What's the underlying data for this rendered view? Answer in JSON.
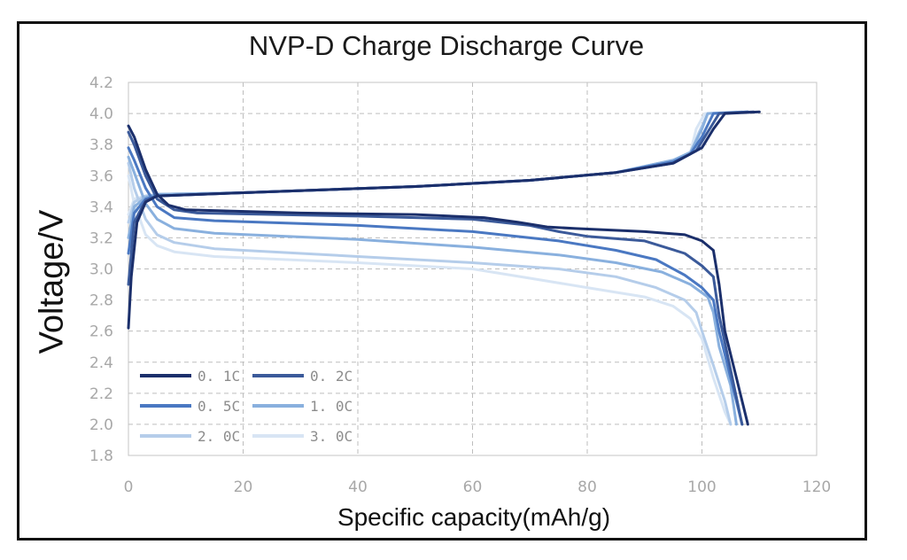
{
  "chart_data": {
    "type": "line",
    "title": "NVP-D Charge Discharge Curve",
    "xlabel": "Specific capacity(mAh/g)",
    "ylabel": "Voltage/V",
    "xlim": [
      0,
      120
    ],
    "ylim": [
      1.8,
      4.2
    ],
    "xticks": [
      "0",
      "20",
      "40",
      "60",
      "80",
      "100",
      "120"
    ],
    "yticks": [
      "1.8",
      "2.0",
      "2.2",
      "2.4",
      "2.6",
      "2.8",
      "3.0",
      "3.2",
      "3.4",
      "3.6",
      "3.8",
      "4.0",
      "4.2"
    ],
    "grid": true,
    "legend_position": "lower-left",
    "series": [
      {
        "name": "0. 1C",
        "color": "#1b2f6b",
        "charge": [
          [
            0,
            2.62
          ],
          [
            0.5,
            2.95
          ],
          [
            1.5,
            3.3
          ],
          [
            3,
            3.43
          ],
          [
            5,
            3.47
          ],
          [
            20,
            3.49
          ],
          [
            50,
            3.53
          ],
          [
            70,
            3.57
          ],
          [
            85,
            3.62
          ],
          [
            95,
            3.68
          ],
          [
            100,
            3.78
          ],
          [
            102,
            3.9
          ],
          [
            104,
            4.0
          ],
          [
            110,
            4.01
          ]
        ],
        "discharge": [
          [
            0,
            3.92
          ],
          [
            1,
            3.85
          ],
          [
            3,
            3.64
          ],
          [
            5,
            3.48
          ],
          [
            7,
            3.41
          ],
          [
            10,
            3.38
          ],
          [
            30,
            3.36
          ],
          [
            50,
            3.35
          ],
          [
            62,
            3.33
          ],
          [
            68,
            3.3
          ],
          [
            73,
            3.27
          ],
          [
            78,
            3.26
          ],
          [
            90,
            3.24
          ],
          [
            97,
            3.22
          ],
          [
            100,
            3.18
          ],
          [
            102,
            3.12
          ],
          [
            103,
            2.9
          ],
          [
            104,
            2.6
          ],
          [
            106,
            2.3
          ],
          [
            108,
            2.0
          ]
        ]
      },
      {
        "name": "0. 2C",
        "color": "#3b5a9a",
        "charge": [
          [
            0,
            2.9
          ],
          [
            1,
            3.3
          ],
          [
            3,
            3.44
          ],
          [
            5,
            3.47
          ],
          [
            20,
            3.49
          ],
          [
            50,
            3.53
          ],
          [
            70,
            3.57
          ],
          [
            85,
            3.62
          ],
          [
            95,
            3.68
          ],
          [
            99,
            3.76
          ],
          [
            101,
            3.88
          ],
          [
            103,
            4.0
          ],
          [
            109,
            4.01
          ]
        ],
        "discharge": [
          [
            0,
            3.88
          ],
          [
            1,
            3.8
          ],
          [
            3,
            3.6
          ],
          [
            5,
            3.45
          ],
          [
            8,
            3.38
          ],
          [
            12,
            3.36
          ],
          [
            40,
            3.34
          ],
          [
            60,
            3.32
          ],
          [
            70,
            3.28
          ],
          [
            75,
            3.24
          ],
          [
            80,
            3.21
          ],
          [
            90,
            3.18
          ],
          [
            97,
            3.1
          ],
          [
            100,
            3.02
          ],
          [
            102,
            2.95
          ],
          [
            103,
            2.7
          ],
          [
            105,
            2.35
          ],
          [
            107,
            2.0
          ]
        ]
      },
      {
        "name": "0. 5C",
        "color": "#4a78c2",
        "charge": [
          [
            0,
            3.1
          ],
          [
            1,
            3.36
          ],
          [
            3,
            3.45
          ],
          [
            5,
            3.47
          ],
          [
            20,
            3.49
          ],
          [
            50,
            3.53
          ],
          [
            70,
            3.57
          ],
          [
            85,
            3.62
          ],
          [
            95,
            3.69
          ],
          [
            98,
            3.74
          ],
          [
            100,
            3.85
          ],
          [
            102,
            4.0
          ],
          [
            108,
            4.01
          ]
        ],
        "discharge": [
          [
            0,
            3.78
          ],
          [
            1,
            3.7
          ],
          [
            3,
            3.52
          ],
          [
            5,
            3.4
          ],
          [
            8,
            3.33
          ],
          [
            15,
            3.31
          ],
          [
            40,
            3.28
          ],
          [
            60,
            3.24
          ],
          [
            75,
            3.18
          ],
          [
            85,
            3.12
          ],
          [
            92,
            3.06
          ],
          [
            97,
            2.96
          ],
          [
            100,
            2.88
          ],
          [
            102,
            2.8
          ],
          [
            103,
            2.6
          ],
          [
            105,
            2.3
          ],
          [
            107,
            2.0
          ]
        ]
      },
      {
        "name": "1. 0C",
        "color": "#89b0de",
        "charge": [
          [
            0,
            3.2
          ],
          [
            1,
            3.4
          ],
          [
            3,
            3.46
          ],
          [
            5,
            3.48
          ],
          [
            20,
            3.49
          ],
          [
            50,
            3.53
          ],
          [
            70,
            3.57
          ],
          [
            85,
            3.62
          ],
          [
            95,
            3.7
          ],
          [
            98,
            3.75
          ],
          [
            100,
            3.9
          ],
          [
            101,
            4.0
          ],
          [
            108,
            4.01
          ]
        ],
        "discharge": [
          [
            0,
            3.72
          ],
          [
            1,
            3.62
          ],
          [
            3,
            3.42
          ],
          [
            5,
            3.32
          ],
          [
            8,
            3.26
          ],
          [
            15,
            3.23
          ],
          [
            40,
            3.19
          ],
          [
            60,
            3.14
          ],
          [
            75,
            3.09
          ],
          [
            85,
            3.04
          ],
          [
            93,
            2.98
          ],
          [
            98,
            2.9
          ],
          [
            101,
            2.82
          ],
          [
            102,
            2.72
          ],
          [
            103,
            2.5
          ],
          [
            105,
            2.25
          ],
          [
            106,
            2.0
          ]
        ]
      },
      {
        "name": "2. 0C",
        "color": "#b5cdea",
        "charge": [
          [
            0,
            3.3
          ],
          [
            1,
            3.43
          ],
          [
            3,
            3.47
          ],
          [
            5,
            3.48
          ],
          [
            20,
            3.49
          ],
          [
            50,
            3.53
          ],
          [
            70,
            3.57
          ],
          [
            85,
            3.62
          ],
          [
            95,
            3.7
          ],
          [
            98,
            3.74
          ],
          [
            99.5,
            3.88
          ],
          [
            101,
            4.0
          ],
          [
            107,
            4.01
          ]
        ],
        "discharge": [
          [
            0,
            3.68
          ],
          [
            1,
            3.52
          ],
          [
            3,
            3.32
          ],
          [
            5,
            3.22
          ],
          [
            8,
            3.17
          ],
          [
            15,
            3.13
          ],
          [
            40,
            3.08
          ],
          [
            60,
            3.04
          ],
          [
            75,
            3.0
          ],
          [
            85,
            2.95
          ],
          [
            92,
            2.88
          ],
          [
            97,
            2.8
          ],
          [
            99,
            2.72
          ],
          [
            100,
            2.6
          ],
          [
            102,
            2.38
          ],
          [
            104,
            2.15
          ],
          [
            105,
            2.0
          ]
        ]
      },
      {
        "name": "3. 0C",
        "color": "#d8e5f4",
        "charge": [
          [
            0,
            3.35
          ],
          [
            1,
            3.45
          ],
          [
            3,
            3.47
          ],
          [
            5,
            3.48
          ],
          [
            20,
            3.49
          ],
          [
            50,
            3.53
          ],
          [
            70,
            3.57
          ],
          [
            85,
            3.62
          ],
          [
            95,
            3.7
          ],
          [
            98,
            3.75
          ],
          [
            99,
            3.9
          ],
          [
            100.5,
            4.0
          ],
          [
            106,
            4.01
          ]
        ],
        "discharge": [
          [
            0,
            3.6
          ],
          [
            1,
            3.42
          ],
          [
            3,
            3.22
          ],
          [
            5,
            3.15
          ],
          [
            8,
            3.11
          ],
          [
            15,
            3.08
          ],
          [
            40,
            3.04
          ],
          [
            60,
            3.0
          ],
          [
            70,
            2.94
          ],
          [
            80,
            2.88
          ],
          [
            90,
            2.82
          ],
          [
            95,
            2.76
          ],
          [
            98,
            2.68
          ],
          [
            100,
            2.55
          ],
          [
            102,
            2.3
          ],
          [
            104,
            2.08
          ],
          [
            105,
            2.0
          ]
        ]
      }
    ]
  }
}
